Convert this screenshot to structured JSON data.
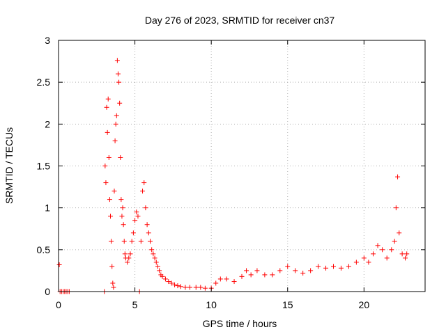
{
  "chart_data": {
    "type": "scatter",
    "title": "Day 276 of 2023, SRMTID for receiver cn37",
    "xlabel": "GPS time / hours",
    "ylabel": "SRMTID / TECUs",
    "xlim": [
      0,
      24
    ],
    "ylim": [
      0,
      3
    ],
    "xticks": [
      0,
      5,
      10,
      15,
      20
    ],
    "yticks": [
      0,
      0.5,
      1,
      1.5,
      2,
      2.5,
      3
    ],
    "xtick_labels": [
      "0",
      "5",
      "10",
      "15",
      "20"
    ],
    "ytick_labels": [
      "0",
      "0.5",
      "1",
      "1.5",
      "2",
      "2.5",
      "3"
    ],
    "grid": true,
    "marker": "+",
    "series": [
      {
        "name": "SRMTID",
        "color": "#ff0000",
        "points": [
          [
            0.05,
            0.32
          ],
          [
            0.1,
            0.0
          ],
          [
            0.2,
            0.0
          ],
          [
            0.3,
            0.0
          ],
          [
            0.4,
            0.0
          ],
          [
            0.5,
            0.0
          ],
          [
            0.6,
            0.0
          ],
          [
            0.7,
            0.0
          ],
          [
            3.0,
            0.0
          ],
          [
            3.05,
            1.5
          ],
          [
            3.1,
            1.3
          ],
          [
            3.15,
            2.2
          ],
          [
            3.2,
            1.9
          ],
          [
            3.25,
            2.3
          ],
          [
            3.3,
            1.6
          ],
          [
            3.35,
            1.1
          ],
          [
            3.4,
            0.9
          ],
          [
            3.45,
            0.6
          ],
          [
            3.5,
            0.3
          ],
          [
            3.55,
            0.1
          ],
          [
            3.6,
            0.05
          ],
          [
            3.65,
            1.2
          ],
          [
            3.7,
            1.8
          ],
          [
            3.75,
            2.0
          ],
          [
            3.8,
            2.1
          ],
          [
            3.85,
            2.76
          ],
          [
            3.9,
            2.6
          ],
          [
            3.95,
            2.5
          ],
          [
            4.0,
            2.25
          ],
          [
            4.05,
            1.6
          ],
          [
            4.1,
            1.1
          ],
          [
            4.15,
            0.9
          ],
          [
            4.2,
            1.0
          ],
          [
            4.25,
            0.8
          ],
          [
            4.3,
            0.6
          ],
          [
            4.35,
            0.45
          ],
          [
            4.4,
            0.4
          ],
          [
            4.5,
            0.35
          ],
          [
            4.6,
            0.4
          ],
          [
            4.7,
            0.45
          ],
          [
            4.8,
            0.6
          ],
          [
            4.9,
            0.7
          ],
          [
            5.0,
            0.85
          ],
          [
            5.1,
            0.95
          ],
          [
            5.2,
            0.9
          ],
          [
            5.3,
            0.0
          ],
          [
            5.4,
            0.6
          ],
          [
            5.5,
            1.2
          ],
          [
            5.6,
            1.3
          ],
          [
            5.7,
            1.0
          ],
          [
            5.8,
            0.8
          ],
          [
            5.9,
            0.7
          ],
          [
            6.0,
            0.6
          ],
          [
            6.1,
            0.5
          ],
          [
            6.2,
            0.45
          ],
          [
            6.3,
            0.4
          ],
          [
            6.4,
            0.35
          ],
          [
            6.5,
            0.3
          ],
          [
            6.6,
            0.25
          ],
          [
            6.7,
            0.2
          ],
          [
            6.8,
            0.18
          ],
          [
            7.0,
            0.15
          ],
          [
            7.2,
            0.12
          ],
          [
            7.4,
            0.1
          ],
          [
            7.6,
            0.08
          ],
          [
            7.8,
            0.07
          ],
          [
            8.0,
            0.06
          ],
          [
            8.3,
            0.05
          ],
          [
            8.6,
            0.05
          ],
          [
            9.0,
            0.05
          ],
          [
            9.3,
            0.05
          ],
          [
            9.6,
            0.04
          ],
          [
            10.0,
            0.04
          ],
          [
            10.3,
            0.1
          ],
          [
            10.6,
            0.15
          ],
          [
            11.0,
            0.15
          ],
          [
            11.5,
            0.12
          ],
          [
            12.0,
            0.18
          ],
          [
            12.3,
            0.25
          ],
          [
            12.6,
            0.2
          ],
          [
            13.0,
            0.25
          ],
          [
            13.5,
            0.2
          ],
          [
            14.0,
            0.2
          ],
          [
            14.5,
            0.25
          ],
          [
            15.0,
            0.3
          ],
          [
            15.5,
            0.25
          ],
          [
            16.0,
            0.22
          ],
          [
            16.5,
            0.25
          ],
          [
            17.0,
            0.3
          ],
          [
            17.5,
            0.28
          ],
          [
            18.0,
            0.3
          ],
          [
            18.5,
            0.28
          ],
          [
            19.0,
            0.3
          ],
          [
            19.5,
            0.35
          ],
          [
            20.0,
            0.4
          ],
          [
            20.3,
            0.35
          ],
          [
            20.6,
            0.45
          ],
          [
            20.9,
            0.55
          ],
          [
            21.2,
            0.5
          ],
          [
            21.5,
            0.4
          ],
          [
            21.8,
            0.5
          ],
          [
            22.0,
            0.6
          ],
          [
            22.1,
            1.0
          ],
          [
            22.2,
            1.37
          ],
          [
            22.3,
            0.7
          ],
          [
            22.5,
            0.45
          ],
          [
            22.7,
            0.4
          ],
          [
            22.8,
            0.45
          ]
        ]
      }
    ]
  }
}
